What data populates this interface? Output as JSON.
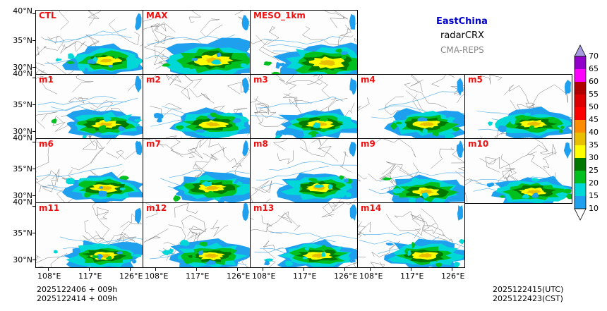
{
  "header": {
    "region": "EastChina",
    "variable": "radarCRX",
    "source": "CMA-REPS"
  },
  "panels": [
    "CTL",
    "MAX",
    "MESO_1km",
    "m1",
    "m2",
    "m3",
    "m4",
    "m5",
    "m6",
    "m7",
    "m8",
    "m9",
    "m10",
    "m11",
    "m12",
    "m13",
    "m14"
  ],
  "axes": {
    "lat_ticks": [
      "40°N",
      "35°N",
      "30°N"
    ],
    "lon_ticks": [
      "108°E",
      "117°E",
      "126°E"
    ]
  },
  "footer": {
    "init_utc": "2025122406  +  009h",
    "init_cst": "2025122414  +  009h",
    "valid_utc": "2025122415(UTC)",
    "valid_cst": "2025122423(CST)"
  },
  "colorbar": {
    "levels": [
      "10",
      "15",
      "20",
      "25",
      "30",
      "35",
      "40",
      "45",
      "50",
      "55",
      "60",
      "65",
      "70"
    ],
    "colors": [
      "#1fa0ee",
      "#00d8d8",
      "#00c020",
      "#007800",
      "#ffff00",
      "#e8c000",
      "#ff8c00",
      "#ff0000",
      "#dd0000",
      "#b00000",
      "#ff00ff",
      "#9000c8",
      "#a89ce0"
    ]
  }
}
